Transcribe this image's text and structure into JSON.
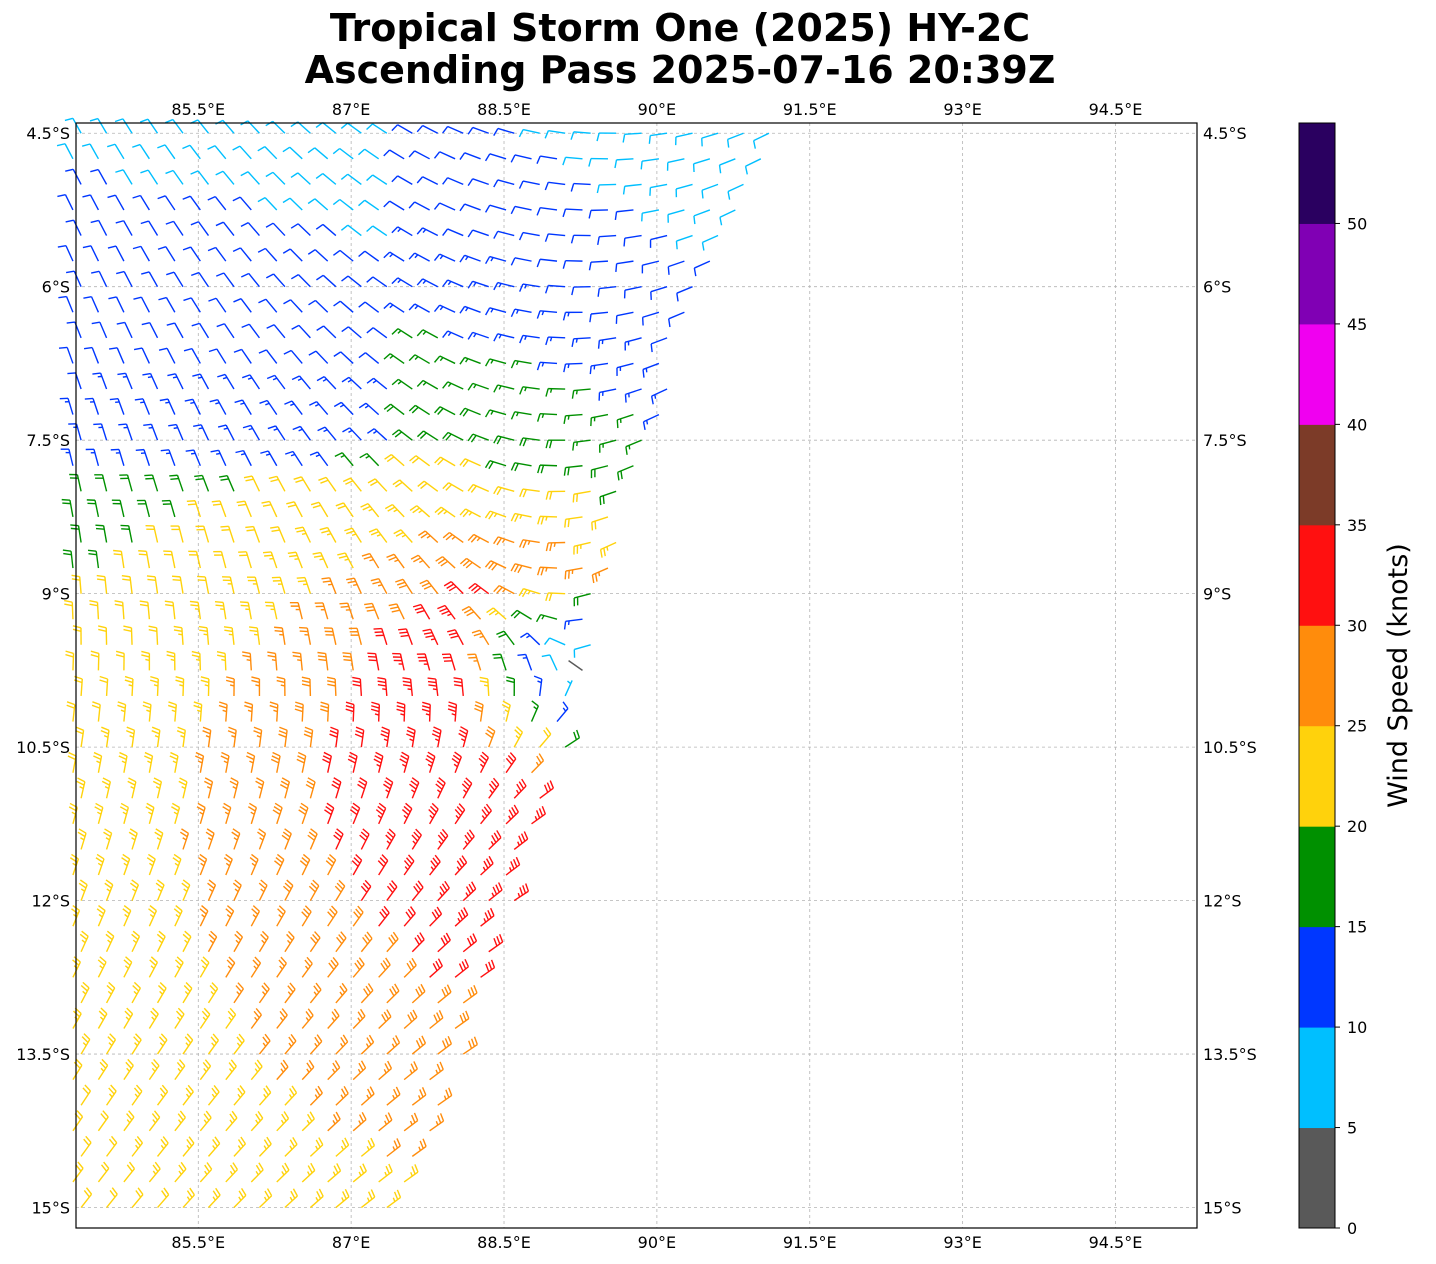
{
  "title_line1": "Tropical Storm One (2025) HY-2C",
  "title_line2": "Ascending Pass 2025-07-16 20:39Z",
  "map": {
    "lon_range": [
      84.3,
      95.3
    ],
    "lat_range": [
      -15.2,
      -4.4
    ],
    "lon_ticks": [
      {
        "value": 85.5,
        "label": "85.5°E"
      },
      {
        "value": 87.0,
        "label": "87°E"
      },
      {
        "value": 88.5,
        "label": "88.5°E"
      },
      {
        "value": 90.0,
        "label": "90°E"
      },
      {
        "value": 91.5,
        "label": "91.5°E"
      },
      {
        "value": 93.0,
        "label": "93°E"
      },
      {
        "value": 94.5,
        "label": "94.5°E"
      }
    ],
    "lat_ticks": [
      {
        "value": -4.5,
        "label": "4.5°S"
      },
      {
        "value": -6.0,
        "label": "6°S"
      },
      {
        "value": -7.5,
        "label": "7.5°S"
      },
      {
        "value": -9.0,
        "label": "9°S"
      },
      {
        "value": -10.5,
        "label": "10.5°S"
      },
      {
        "value": -12.0,
        "label": "12°S"
      },
      {
        "value": -13.5,
        "label": "13.5°S"
      },
      {
        "value": -15.0,
        "label": "15°S"
      }
    ],
    "gridlines": true,
    "circulation_center": {
      "lon": 89.2,
      "lat": -10.1
    },
    "swath_east_edge": [
      {
        "lat": -4.4,
        "lon": 91.2
      },
      {
        "lat": -6.0,
        "lon": 90.5
      },
      {
        "lat": -7.5,
        "lon": 90.0
      },
      {
        "lat": -9.0,
        "lon": 89.5
      },
      {
        "lat": -10.5,
        "lon": 89.1
      },
      {
        "lat": -12.0,
        "lon": 88.6
      },
      {
        "lat": -13.5,
        "lon": 88.1
      },
      {
        "lat": -15.2,
        "lon": 87.5
      }
    ]
  },
  "colorbar": {
    "label": "Wind Speed (knots)",
    "bins": [
      {
        "min": 0,
        "max": 5,
        "color": "#595959"
      },
      {
        "min": 5,
        "max": 10,
        "color": "#00bfff"
      },
      {
        "min": 10,
        "max": 15,
        "color": "#0037ff"
      },
      {
        "min": 15,
        "max": 20,
        "color": "#009000"
      },
      {
        "min": 20,
        "max": 25,
        "color": "#ffd20c"
      },
      {
        "min": 25,
        "max": 30,
        "color": "#ff8c0c"
      },
      {
        "min": 30,
        "max": 35,
        "color": "#ff1010"
      },
      {
        "min": 35,
        "max": 40,
        "color": "#7c3b28"
      },
      {
        "min": 40,
        "max": 45,
        "color": "#f000f0"
      },
      {
        "min": 45,
        "max": 50,
        "color": "#8000b4"
      },
      {
        "min": 50,
        "max": 55,
        "color": "#2a0060"
      }
    ],
    "tick_labels": [
      "0",
      "5",
      "10",
      "15",
      "20",
      "25",
      "30",
      "35",
      "40",
      "45",
      "50"
    ]
  }
}
